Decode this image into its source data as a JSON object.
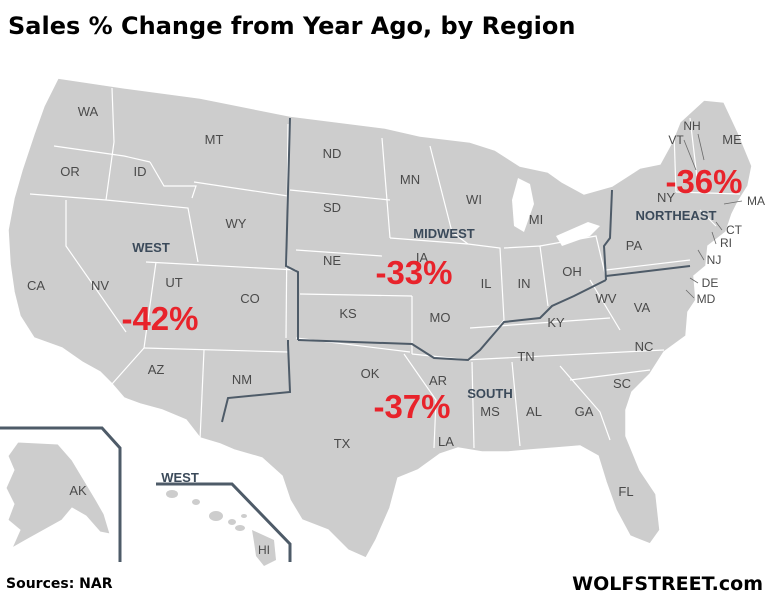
{
  "title": "Sales % Change from Year Ago, by Region",
  "source": "Sources: NAR",
  "brand": "WOLFSTREET.com",
  "colors": {
    "land": "#cdcdcd",
    "state_line": "#ffffff",
    "region_line": "#4e5b68",
    "highlight": "#e8232b"
  },
  "regions": {
    "west": {
      "label": "WEST",
      "change": "-42%"
    },
    "west_inset": {
      "label": "WEST"
    },
    "midwest": {
      "label": "MIDWEST",
      "change": "-33%"
    },
    "south": {
      "label": "SOUTH",
      "change": "-37%"
    },
    "northeast": {
      "label": "NORTHEAST",
      "change": "-36%"
    }
  },
  "states": {
    "WA": "WA",
    "OR": "OR",
    "ID": "ID",
    "MT": "MT",
    "WY": "WY",
    "CA": "CA",
    "NV": "NV",
    "UT": "UT",
    "CO": "CO",
    "AZ": "AZ",
    "NM": "NM",
    "ND": "ND",
    "SD": "SD",
    "NE": "NE",
    "KS": "KS",
    "MN": "MN",
    "IA": "IA",
    "MO": "MO",
    "WI": "WI",
    "IL": "IL",
    "MI": "MI",
    "IN": "IN",
    "OH": "OH",
    "OK": "OK",
    "TX": "TX",
    "AR": "AR",
    "LA": "LA",
    "MS": "MS",
    "AL": "AL",
    "GA": "GA",
    "FL": "FL",
    "TN": "TN",
    "KY": "KY",
    "WV": "WV",
    "VA": "VA",
    "NC": "NC",
    "SC": "SC",
    "PA": "PA",
    "NY": "NY",
    "VT": "VT",
    "NH": "NH",
    "ME": "ME",
    "MA": "MA",
    "CT": "CT",
    "RI": "RI",
    "NJ": "NJ",
    "DE": "DE",
    "MD": "MD",
    "AK": "AK",
    "HI": "HI"
  }
}
